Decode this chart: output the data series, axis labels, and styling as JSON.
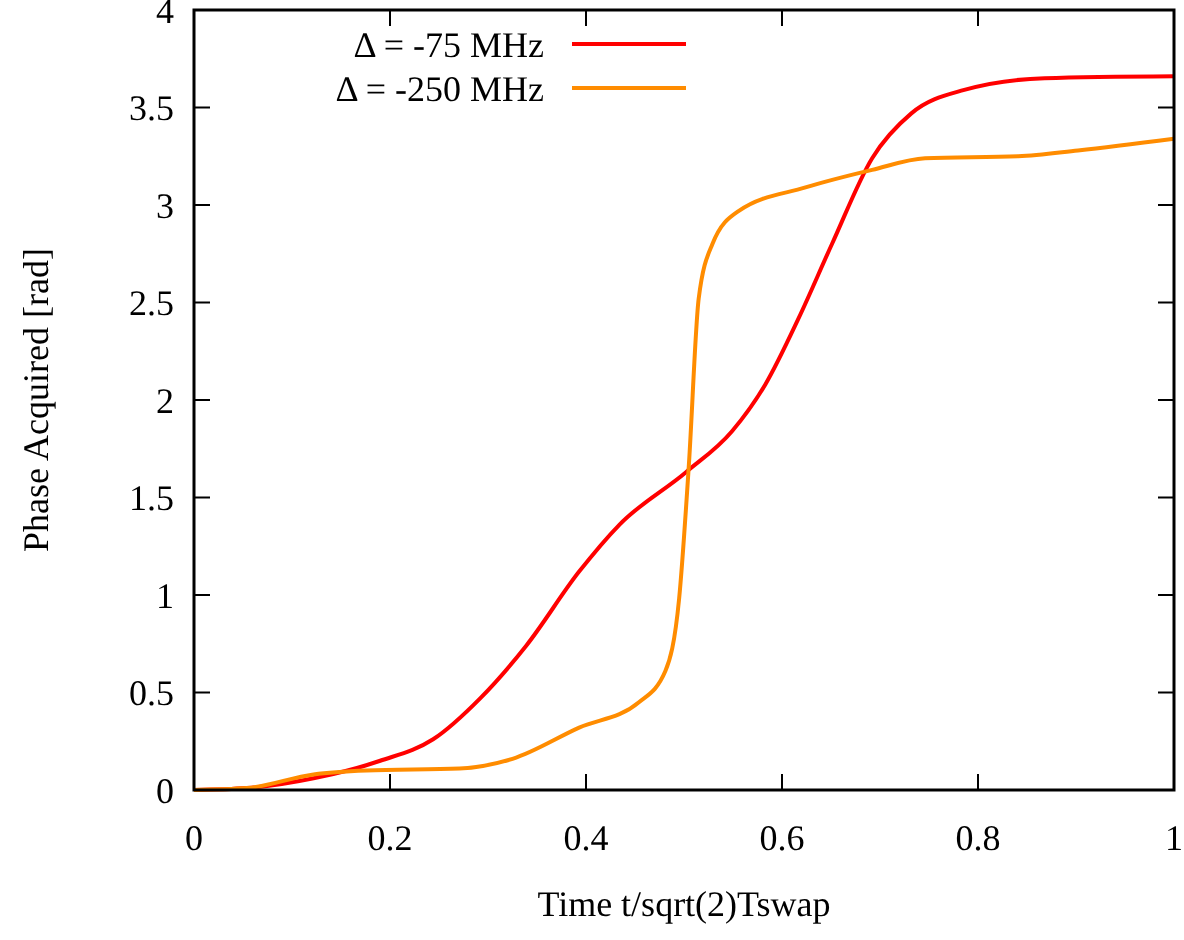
{
  "chart_data": {
    "type": "line",
    "xlabel": "Time t/sqrt(2)Tswap",
    "ylabel": "Phase Acquired [rad]",
    "xlim": [
      0,
      1
    ],
    "ylim": [
      0,
      4
    ],
    "xticks": [
      0,
      0.2,
      0.4,
      0.6,
      0.8,
      1
    ],
    "yticks": [
      0,
      0.5,
      1,
      1.5,
      2,
      2.5,
      3,
      3.5,
      4
    ],
    "grid": false,
    "legend": "top left",
    "line_style": "solid",
    "series": [
      {
        "name": "Δ = -75 MHz",
        "color": "#ff0000",
        "x": [
          0,
          0.054,
          0.122,
          0.19,
          0.244,
          0.292,
          0.339,
          0.393,
          0.434,
          0.502,
          0.549,
          0.583,
          0.617,
          0.651,
          0.692,
          0.732,
          0.786,
          0.868,
          1
        ],
        "values": [
          0,
          0.01,
          0.06,
          0.15,
          0.26,
          0.47,
          0.74,
          1.12,
          1.36,
          1.63,
          1.84,
          2.08,
          2.42,
          2.8,
          3.24,
          3.47,
          3.59,
          3.65,
          3.66
        ]
      },
      {
        "name": "Δ = -250 MHz",
        "color": "#ff8c00",
        "x": [
          0,
          0.054,
          0.122,
          0.176,
          0.271,
          0.325,
          0.393,
          0.454,
          0.481,
          0.495,
          0.505,
          0.515,
          0.529,
          0.556,
          0.624,
          0.692,
          0.746,
          0.841,
          0.902,
          1
        ],
        "values": [
          0,
          0.01,
          0.08,
          0.1,
          0.11,
          0.16,
          0.32,
          0.45,
          0.61,
          0.98,
          1.67,
          2.52,
          2.8,
          2.97,
          3.09,
          3.18,
          3.24,
          3.25,
          3.28,
          3.34
        ]
      }
    ]
  }
}
